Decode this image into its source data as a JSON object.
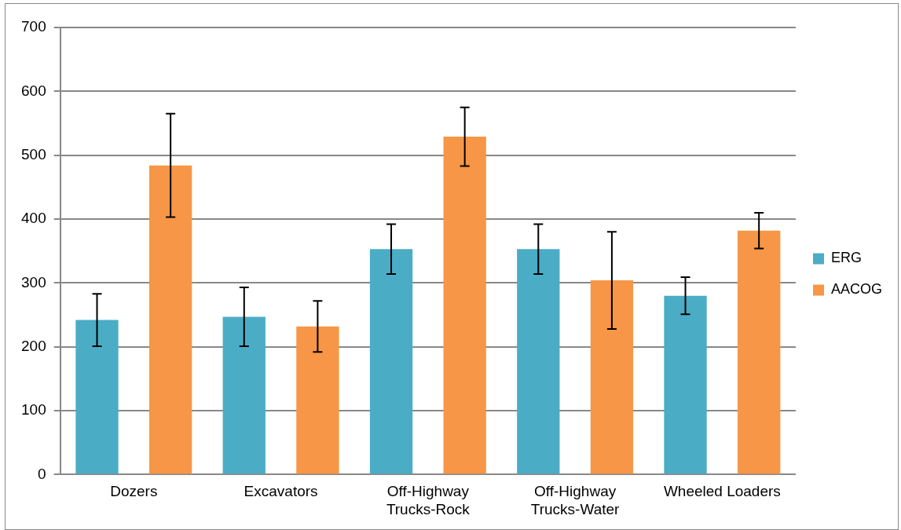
{
  "chart_data": {
    "type": "bar",
    "categories": [
      "Dozers",
      "Excavators",
      "Off-Highway Trucks-Rock",
      "Off-Highway Trucks-Water",
      "Wheeled Loaders"
    ],
    "series": [
      {
        "name": "ERG",
        "color": "#4bacc6",
        "values": [
          242,
          247,
          353,
          353,
          280
        ],
        "errors": [
          41,
          46,
          39,
          39,
          29
        ]
      },
      {
        "name": "AACOG",
        "color": "#f79646",
        "values": [
          484,
          232,
          529,
          304,
          382
        ],
        "errors": [
          81,
          40,
          46,
          76,
          28
        ]
      }
    ],
    "ylim": [
      0,
      700
    ],
    "yticks": [
      0,
      100,
      200,
      300,
      400,
      500,
      600,
      700
    ],
    "grid": "y",
    "legend": "right"
  }
}
